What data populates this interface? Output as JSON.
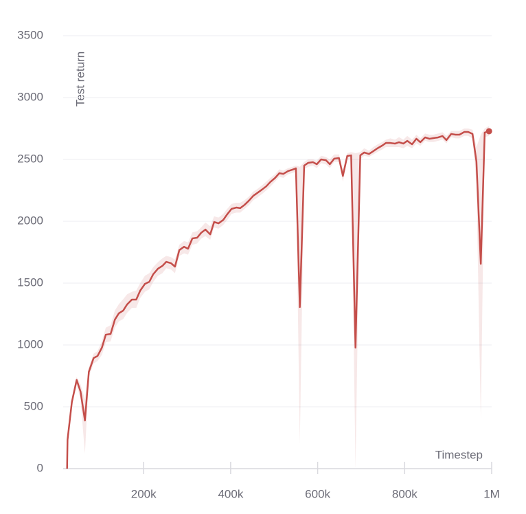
{
  "chart_data": {
    "type": "line",
    "xlabel": "Timestep",
    "ylabel": "Test return",
    "x": [
      24000,
      25000,
      35000,
      46000,
      55000,
      65000,
      74000,
      85000,
      94000,
      104000,
      113000,
      124000,
      134000,
      143000,
      153000,
      162000,
      173000,
      183000,
      192000,
      203000,
      213000,
      222000,
      233000,
      243000,
      252000,
      263000,
      272000,
      282000,
      293000,
      302000,
      312000,
      323000,
      332000,
      342000,
      353000,
      362000,
      372000,
      383000,
      392000,
      402000,
      413000,
      422000,
      432000,
      442000,
      452000,
      461000,
      472000,
      482000,
      491000,
      502000,
      512000,
      521000,
      532000,
      542000,
      550000,
      559000,
      569000,
      578000,
      589000,
      598000,
      608000,
      619000,
      628000,
      638000,
      649000,
      658000,
      668000,
      677000,
      687000,
      698000,
      707000,
      718000,
      728000,
      737000,
      748000,
      757000,
      767000,
      778000,
      787000,
      797000,
      806000,
      817000,
      827000,
      836000,
      847000,
      857000,
      866000,
      877000,
      887000,
      896000,
      907000,
      917000,
      926000,
      937000,
      946000,
      956000,
      965000,
      975000,
      984000,
      994000
    ],
    "series": [
      {
        "color": "#c44e4a",
        "values": [
          0,
          233,
          539,
          717,
          622,
          389,
          783,
          894,
          911,
          978,
          1083,
          1089,
          1206,
          1256,
          1278,
          1328,
          1367,
          1367,
          1439,
          1494,
          1511,
          1572,
          1617,
          1639,
          1672,
          1661,
          1633,
          1767,
          1794,
          1778,
          1861,
          1867,
          1906,
          1933,
          1894,
          1994,
          1983,
          2011,
          2056,
          2100,
          2111,
          2106,
          2133,
          2167,
          2206,
          2228,
          2256,
          2283,
          2317,
          2350,
          2389,
          2383,
          2406,
          2417,
          2428,
          1306,
          2450,
          2472,
          2478,
          2461,
          2500,
          2494,
          2461,
          2506,
          2511,
          2367,
          2528,
          2533,
          978,
          2533,
          2556,
          2544,
          2567,
          2589,
          2611,
          2633,
          2633,
          2628,
          2639,
          2628,
          2650,
          2622,
          2667,
          2639,
          2678,
          2667,
          2672,
          2678,
          2689,
          2656,
          2706,
          2700,
          2700,
          2722,
          2722,
          2706,
          2483,
          1656,
          2717,
          2728
        ],
        "lower": [
          0,
          200,
          500,
          680,
          560,
          120,
          740,
          850,
          870,
          920,
          1020,
          1030,
          1140,
          1190,
          1210,
          1260,
          1300,
          1300,
          1380,
          1430,
          1450,
          1510,
          1560,
          1580,
          1620,
          1610,
          1580,
          1720,
          1740,
          1730,
          1810,
          1820,
          1860,
          1880,
          1850,
          1950,
          1940,
          1970,
          2010,
          2060,
          2070,
          2070,
          2100,
          2130,
          2170,
          2190,
          2220,
          2250,
          2280,
          2320,
          2360,
          2350,
          2380,
          2390,
          2400,
          200,
          2420,
          2440,
          2450,
          2430,
          2470,
          2460,
          2430,
          2480,
          2480,
          2320,
          2500,
          2500,
          0,
          2500,
          2530,
          2520,
          2540,
          2560,
          2580,
          2600,
          2600,
          2600,
          2600,
          2590,
          2610,
          2590,
          2630,
          2610,
          2650,
          2640,
          2640,
          2650,
          2660,
          2630,
          2680,
          2670,
          2670,
          2690,
          2690,
          2670,
          2300,
          400,
          2680,
          2690
        ],
        "upper": [
          0,
          260,
          580,
          740,
          680,
          560,
          820,
          930,
          950,
          1030,
          1140,
          1160,
          1280,
          1330,
          1370,
          1410,
          1430,
          1440,
          1500,
          1560,
          1580,
          1630,
          1670,
          1700,
          1720,
          1710,
          1690,
          1810,
          1840,
          1830,
          1910,
          1920,
          1950,
          1990,
          1960,
          2040,
          2030,
          2060,
          2100,
          2140,
          2150,
          2150,
          2170,
          2200,
          2240,
          2260,
          2290,
          2320,
          2350,
          2380,
          2420,
          2410,
          2430,
          2440,
          2450,
          2440,
          2480,
          2500,
          2500,
          2490,
          2530,
          2520,
          2500,
          2540,
          2540,
          2420,
          2550,
          2560,
          2550,
          2560,
          2590,
          2570,
          2600,
          2620,
          2640,
          2660,
          2670,
          2660,
          2680,
          2660,
          2690,
          2660,
          2700,
          2670,
          2710,
          2700,
          2700,
          2710,
          2720,
          2690,
          2730,
          2730,
          2730,
          2750,
          2750,
          2740,
          2600,
          2700,
          2750,
          2770
        ]
      }
    ],
    "xlim": [
      15000,
      1000000
    ],
    "xticks": [
      {
        "value": 200000,
        "label": "200k"
      },
      {
        "value": 400000,
        "label": "400k"
      },
      {
        "value": 600000,
        "label": "600k"
      },
      {
        "value": 800000,
        "label": "800k"
      },
      {
        "value": 1000000,
        "label": "1M"
      }
    ],
    "ylim": [
      0,
      3500
    ],
    "yticks": [
      0,
      500,
      1000,
      1500,
      2000,
      2500,
      3000,
      3500
    ],
    "grid": true
  }
}
